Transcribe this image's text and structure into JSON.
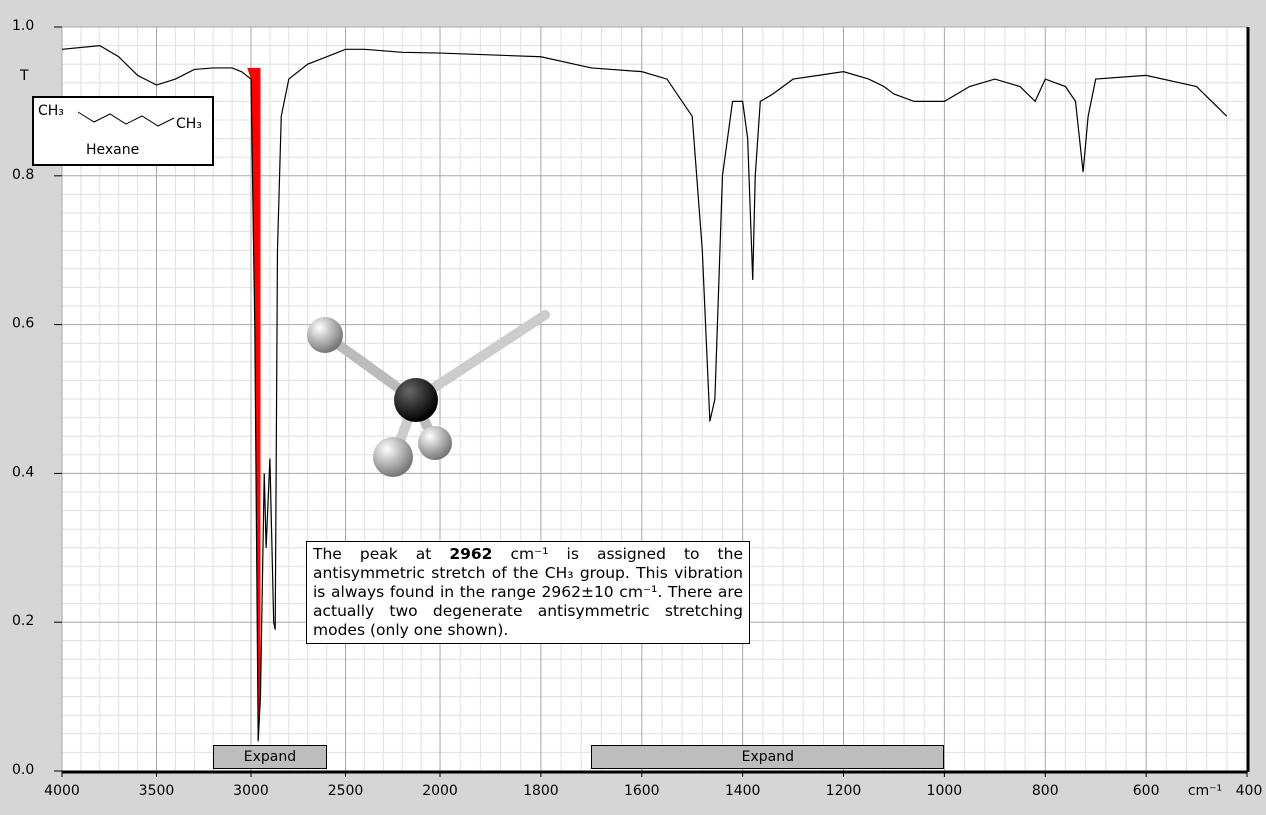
{
  "chart_data": {
    "type": "line",
    "ylabel": "T",
    "xlabel": "cm⁻¹",
    "xlim": [
      4000,
      400
    ],
    "x_scale_break": 2000,
    "xticks": [
      4000,
      3500,
      3000,
      2500,
      2000,
      1800,
      1600,
      1400,
      1200,
      1000,
      800,
      600,
      400
    ],
    "ylim": [
      0,
      1
    ],
    "yticks": [
      {
        "value": 0,
        "label": "0.0"
      },
      0.2,
      0.4,
      0.6,
      0.8,
      {
        "value": 1,
        "label": "1.0"
      }
    ],
    "grid": true,
    "minor_grid": true,
    "series": [
      {
        "name": "Hexane",
        "color": "#000000",
        "x": [
          4000,
          3800,
          3700,
          3600,
          3500,
          3400,
          3300,
          3200,
          3100,
          3050,
          3000,
          2980,
          2962,
          2950,
          2930,
          2920,
          2900,
          2880,
          2872,
          2860,
          2840,
          2800,
          2700,
          2600,
          2500,
          2400,
          2300,
          2200,
          2000,
          1800,
          1700,
          1600,
          1550,
          1500,
          1480,
          1465,
          1455,
          1440,
          1420,
          1400,
          1390,
          1380,
          1375,
          1365,
          1340,
          1300,
          1250,
          1200,
          1150,
          1120,
          1100,
          1060,
          1000,
          950,
          900,
          850,
          820,
          800,
          760,
          740,
          725,
          715,
          700,
          600,
          500,
          440
        ],
        "values": [
          0.97,
          0.975,
          0.96,
          0.935,
          0.922,
          0.93,
          0.943,
          0.945,
          0.945,
          0.94,
          0.93,
          0.6,
          0.04,
          0.1,
          0.4,
          0.3,
          0.42,
          0.2,
          0.19,
          0.7,
          0.88,
          0.93,
          0.95,
          0.96,
          0.97,
          0.97,
          0.968,
          0.966,
          0.965,
          0.96,
          0.945,
          0.94,
          0.93,
          0.88,
          0.7,
          0.47,
          0.5,
          0.8,
          0.9,
          0.9,
          0.85,
          0.66,
          0.8,
          0.9,
          0.91,
          0.93,
          0.935,
          0.94,
          0.93,
          0.92,
          0.91,
          0.9,
          0.9,
          0.92,
          0.93,
          0.92,
          0.9,
          0.93,
          0.92,
          0.9,
          0.805,
          0.88,
          0.93,
          0.935,
          0.92,
          0.88
        ]
      }
    ],
    "highlight": {
      "x_range": [
        3020,
        2950
      ],
      "top": 0.945,
      "color": "#ff0000"
    },
    "molecule": {
      "label_left": "CH₃",
      "label_right": "CH₃",
      "name": "Hexane"
    },
    "annotation": {
      "before": "The peak at ",
      "bold": "2962",
      "after": " cm⁻¹ is assigned to the antisymmetric stretch of the CH₃ group. This vibration is always found in the range 2962±10 cm⁻¹. There are actually two degenerate antisymmetric stretching modes (only one shown)."
    },
    "buttons": {
      "left": {
        "label": "Expand",
        "x_range": [
          3200,
          2600
        ]
      },
      "right": {
        "label": "Expand",
        "x_range": [
          1700,
          1000
        ]
      }
    }
  }
}
